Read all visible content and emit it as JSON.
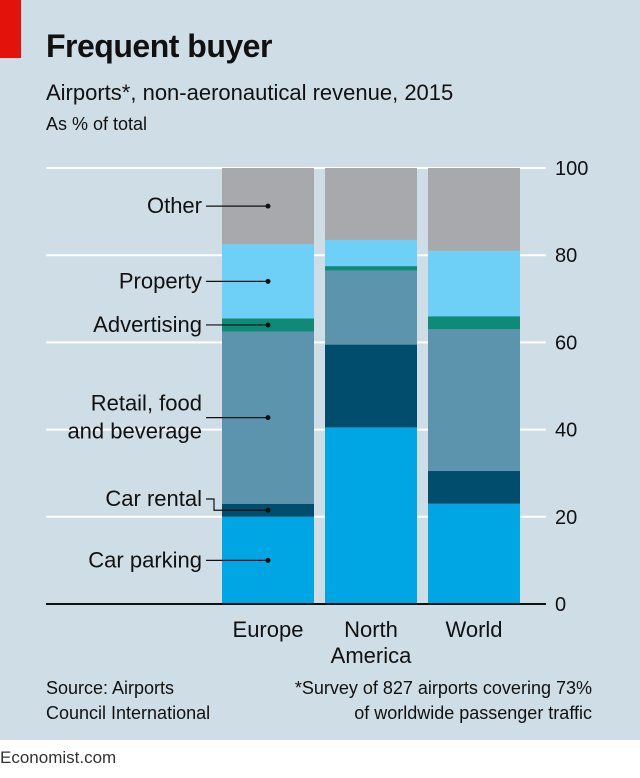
{
  "title": "Frequent buyer",
  "subtitle": "Airports*, non-aeronautical revenue, 2015",
  "unit_label": "As % of total",
  "source": [
    "Source: Airports",
    "Council International"
  ],
  "footnote": [
    "*Survey of 827 airports covering 73%",
    "of worldwide passenger traffic"
  ],
  "brand": "Economist.com",
  "colors": {
    "background": "#cfdde6",
    "accent_red": "#e3120b",
    "Car parking": "#00a5e3",
    "Car rental": "#004d6e",
    "Retail, food and beverage": "#5c93ad",
    "Advertising": "#108a78",
    "Property": "#6ed0f6",
    "Other": "#a7a9ac"
  },
  "chart_data": {
    "type": "bar",
    "stacked": true,
    "categories": [
      [
        "Europe"
      ],
      [
        "North",
        "America"
      ],
      [
        "World"
      ]
    ],
    "ylim": [
      0,
      100
    ],
    "yticks": [
      0,
      20,
      40,
      60,
      80,
      100
    ],
    "y_axis_side": "right",
    "grid": true,
    "series": [
      {
        "name": "Car parking",
        "label_lines": [
          "Car parking"
        ],
        "values": [
          20,
          40.5,
          23
        ]
      },
      {
        "name": "Car rental",
        "label_lines": [
          "Car rental"
        ],
        "values": [
          3,
          19,
          7.5
        ]
      },
      {
        "name": "Retail, food and beverage",
        "label_lines": [
          "Retail, food",
          "and beverage"
        ],
        "values": [
          39.5,
          17,
          32.5
        ]
      },
      {
        "name": "Advertising",
        "label_lines": [
          "Advertising"
        ],
        "values": [
          3,
          1,
          3
        ]
      },
      {
        "name": "Property",
        "label_lines": [
          "Property"
        ],
        "values": [
          17,
          6,
          15
        ]
      },
      {
        "name": "Other",
        "label_lines": [
          "Other"
        ],
        "values": [
          17.5,
          16.5,
          19
        ]
      }
    ]
  }
}
